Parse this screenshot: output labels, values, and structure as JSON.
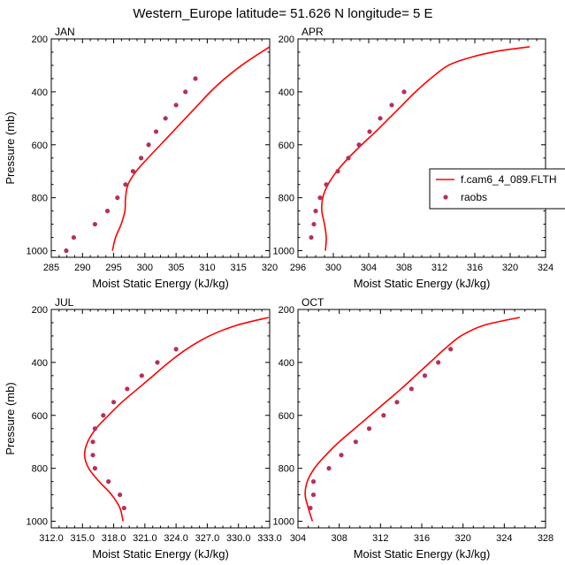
{
  "figure_title": "Western_Europe  latitude= 51.626 N longitude= 5 E",
  "legend": {
    "model_label": "f.cam6_4_089.FLTH",
    "obs_label": "raobs"
  },
  "colors": {
    "model_line": "#ff0000",
    "obs_marker": "#b5305c"
  },
  "chart_data": [
    {
      "type": "line",
      "panel_label": "JAN",
      "xlabel": "Moist Static Energy (kJ/kg)",
      "ylabel": "Pressure (mb)",
      "xlim": [
        285,
        320
      ],
      "ylim": [
        1025,
        200
      ],
      "y_reversed": true,
      "xticks": [
        285,
        290,
        295,
        300,
        305,
        310,
        315,
        320
      ],
      "xtick_labels": [
        "285",
        "290",
        "295",
        "300",
        "305",
        "310",
        "315",
        "320"
      ],
      "yticks": [
        200,
        400,
        600,
        800,
        1000
      ],
      "ytick_labels": [
        "200",
        "400",
        "600",
        "800",
        "1000"
      ],
      "series": [
        {
          "name": "f.cam6_4_089.FLTH",
          "style": "line",
          "x": [
            294.8,
            295.3,
            296.2,
            296.8,
            296.9,
            297.3,
            298.6,
            300.5,
            302.5,
            304.5,
            306.5,
            308.5,
            310.5,
            312.8,
            315.5,
            318.0,
            320.0
          ],
          "y": [
            1000,
            950,
            900,
            850,
            800,
            750,
            700,
            650,
            600,
            550,
            500,
            450,
            400,
            350,
            300,
            260,
            230
          ]
        },
        {
          "name": "raobs",
          "style": "marker",
          "x": [
            287.4,
            288.6,
            292.0,
            294.0,
            295.6,
            296.9,
            298.1,
            299.4,
            300.6,
            301.8,
            303.3,
            305.0,
            306.5,
            308.1
          ],
          "y": [
            1000,
            950,
            900,
            850,
            800,
            750,
            700,
            650,
            600,
            550,
            500,
            450,
            400,
            350
          ]
        }
      ]
    },
    {
      "type": "line",
      "panel_label": "APR",
      "xlabel": "Moist Static Energy (kJ/kg)",
      "ylabel": "",
      "xlim": [
        296,
        324
      ],
      "ylim": [
        1025,
        200
      ],
      "y_reversed": true,
      "xticks": [
        296,
        300,
        304,
        308,
        312,
        316,
        320,
        324
      ],
      "xtick_labels": [
        "296",
        "300",
        "304",
        "308",
        "312",
        "316",
        "320",
        "324"
      ],
      "yticks": [
        200,
        400,
        600,
        800,
        1000
      ],
      "ytick_labels": [
        "200",
        "400",
        "600",
        "800",
        "1000"
      ],
      "series": [
        {
          "name": "f.cam6_4_089.FLTH",
          "style": "line",
          "x": [
            299.1,
            299.2,
            299.0,
            298.7,
            298.8,
            299.4,
            300.4,
            301.7,
            303.2,
            304.8,
            306.3,
            307.8,
            309.3,
            311.0,
            313.0,
            315.5,
            318.8,
            322.2
          ],
          "y": [
            1000,
            950,
            900,
            850,
            800,
            750,
            700,
            650,
            600,
            550,
            500,
            450,
            400,
            350,
            300,
            270,
            245,
            230
          ]
        },
        {
          "name": "raobs",
          "style": "marker",
          "x": [
            297.5,
            297.8,
            298.0,
            298.5,
            299.2,
            300.5,
            301.7,
            302.9,
            304.1,
            305.3,
            306.6,
            308.0
          ],
          "y": [
            950,
            900,
            850,
            800,
            750,
            700,
            650,
            600,
            550,
            500,
            450,
            400
          ]
        }
      ]
    },
    {
      "type": "line",
      "panel_label": "JUL",
      "xlabel": "Moist Static Energy (kJ/kg)",
      "ylabel": "Pressure (mb)",
      "xlim": [
        312,
        333
      ],
      "ylim": [
        1025,
        200
      ],
      "y_reversed": true,
      "xticks": [
        312,
        315,
        318,
        321,
        324,
        327,
        330,
        333
      ],
      "xtick_labels": [
        "312.0",
        "315.0",
        "318.0",
        "321.0",
        "324.0",
        "327.0",
        "330.0",
        "333.0"
      ],
      "yticks": [
        200,
        400,
        600,
        800,
        1000
      ],
      "ytick_labels": [
        "200",
        "400",
        "600",
        "800",
        "1000"
      ],
      "series": [
        {
          "name": "f.cam6_4_089.FLTH",
          "style": "line",
          "x": [
            318.9,
            318.6,
            317.8,
            316.6,
            315.6,
            315.2,
            315.5,
            316.3,
            317.5,
            318.8,
            320.3,
            321.8,
            323.3,
            325.0,
            327.2,
            329.8,
            332.9
          ],
          "y": [
            1000,
            950,
            900,
            850,
            800,
            750,
            700,
            650,
            600,
            550,
            500,
            450,
            400,
            350,
            300,
            260,
            230
          ]
        },
        {
          "name": "raobs",
          "style": "marker",
          "x": [
            319.0,
            318.6,
            317.5,
            316.2,
            316.0,
            316.0,
            316.2,
            317.0,
            318.0,
            319.3,
            320.7,
            322.2,
            324.0
          ],
          "y": [
            950,
            900,
            850,
            800,
            750,
            700,
            650,
            600,
            550,
            500,
            450,
            400,
            350
          ]
        }
      ]
    },
    {
      "type": "line",
      "panel_label": "OCT",
      "xlabel": "Moist Static Energy (kJ/kg)",
      "ylabel": "",
      "xlim": [
        304,
        328
      ],
      "ylim": [
        1025,
        200
      ],
      "y_reversed": true,
      "xticks": [
        304,
        308,
        312,
        316,
        320,
        324,
        328
      ],
      "xtick_labels": [
        "304",
        "308",
        "312",
        "316",
        "320",
        "324",
        "328"
      ],
      "yticks": [
        200,
        400,
        600,
        800,
        1000
      ],
      "ytick_labels": [
        "200",
        "400",
        "600",
        "800",
        "1000"
      ],
      "series": [
        {
          "name": "f.cam6_4_089.FLTH",
          "style": "line",
          "x": [
            305.4,
            305.0,
            304.7,
            304.9,
            305.6,
            306.7,
            308.0,
            309.5,
            311.0,
            312.5,
            314.0,
            315.4,
            316.8,
            318.2,
            319.8,
            322.0,
            325.5
          ],
          "y": [
            1000,
            950,
            900,
            850,
            800,
            750,
            700,
            650,
            600,
            550,
            500,
            450,
            400,
            350,
            300,
            260,
            230
          ]
        },
        {
          "name": "raobs",
          "style": "marker",
          "x": [
            305.2,
            305.5,
            305.5,
            307.0,
            308.2,
            309.6,
            310.9,
            312.3,
            313.6,
            315.0,
            316.3,
            317.6,
            318.8
          ],
          "y": [
            950,
            900,
            850,
            800,
            750,
            700,
            650,
            600,
            550,
            500,
            450,
            400,
            350
          ]
        }
      ]
    }
  ]
}
